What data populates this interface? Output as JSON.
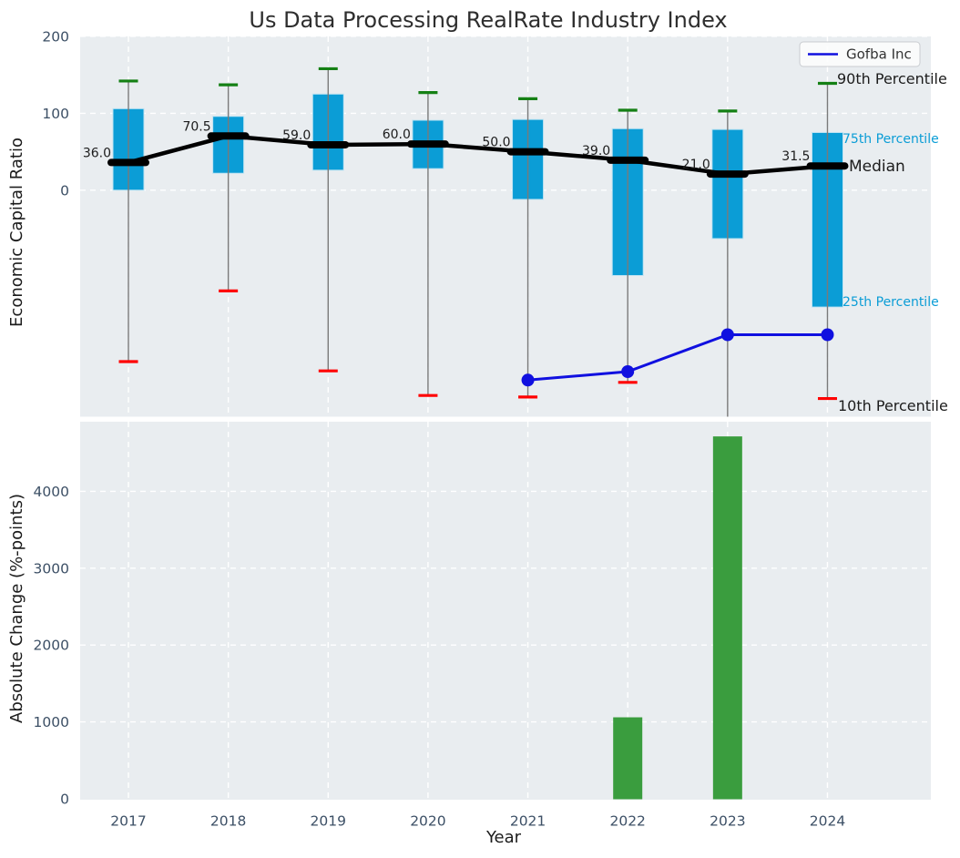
{
  "title": "Us Data Processing RealRate Industry Index",
  "legend": {
    "items": [
      {
        "label": "Gofba Inc",
        "color": "#1010e0"
      }
    ]
  },
  "annotations": [
    {
      "text": "90th Percentile",
      "style": "dark"
    },
    {
      "text": "75th Percentile",
      "style": "cyan"
    },
    {
      "text": "Median",
      "style": "dark"
    },
    {
      "text": "25th Percentile",
      "style": "cyan"
    },
    {
      "text": "10th Percentile",
      "style": "dark"
    }
  ],
  "colors": {
    "figure_bg": "#ffffff",
    "plot_bg": "#e9edf0",
    "grid": "#ffffff",
    "box_fill": "#0b9dd6",
    "box_edge": "#bfe3f2",
    "whisker": "#7a7a7a",
    "cap_90": "#148014",
    "cap_10": "#ff0000",
    "median": "#000000",
    "gofba_line": "#1010e0",
    "bar_fill": "#3a9d3e",
    "tick_label": "#3d5066",
    "text_dark": "#1c1c1c",
    "cyan_label": "#0b9dd6",
    "legend_bg": "#fdfdfd",
    "legend_border": "#c9ccd0"
  },
  "chart_data": [
    {
      "type": "boxplot",
      "title": "Us Data Processing RealRate Industry Index",
      "ylabel": "Economic Capital Ratio",
      "categories": [
        "2017",
        "2018",
        "2019",
        "2020",
        "2021",
        "2022",
        "2023",
        "2024"
      ],
      "yticks": [
        0,
        100,
        200
      ],
      "ylim": [
        -294,
        200
      ],
      "grid": true,
      "legend_position": "upper right",
      "series": [
        {
          "name": "90th Percentile",
          "values": [
            142,
            137,
            158,
            127,
            119,
            104,
            103,
            139
          ]
        },
        {
          "name": "75th Percentile",
          "values": [
            106,
            96,
            125,
            91,
            92,
            80,
            79,
            75
          ]
        },
        {
          "name": "Median",
          "values": [
            36.0,
            70.5,
            59.0,
            60.0,
            50.0,
            39.0,
            21.0,
            31.5
          ]
        },
        {
          "name": "25th Percentile",
          "values": [
            0,
            22,
            26,
            28,
            -12,
            -111,
            -63,
            -152
          ]
        },
        {
          "name": "10th Percentile",
          "values": [
            -223,
            -131,
            -235,
            -267,
            -269,
            -250,
            -300,
            -271
          ]
        },
        {
          "name": "Gofba Inc",
          "values": [
            null,
            null,
            null,
            null,
            -247,
            -236,
            -188,
            -188
          ]
        }
      ],
      "median_labels": [
        "36.0",
        "70.5",
        "59.0",
        "60.0",
        "50.0",
        "39.0",
        "21.0",
        "31.5"
      ]
    },
    {
      "type": "bar",
      "ylabel": "Absolute Change (%-points)",
      "xlabel": "Year",
      "categories": [
        "2017",
        "2018",
        "2019",
        "2020",
        "2021",
        "2022",
        "2023",
        "2024"
      ],
      "yticks": [
        0,
        1000,
        2000,
        3000,
        4000
      ],
      "ylim": [
        0,
        4935
      ],
      "grid": true,
      "values": [
        null,
        null,
        null,
        null,
        null,
        1060,
        4714,
        null
      ]
    }
  ]
}
